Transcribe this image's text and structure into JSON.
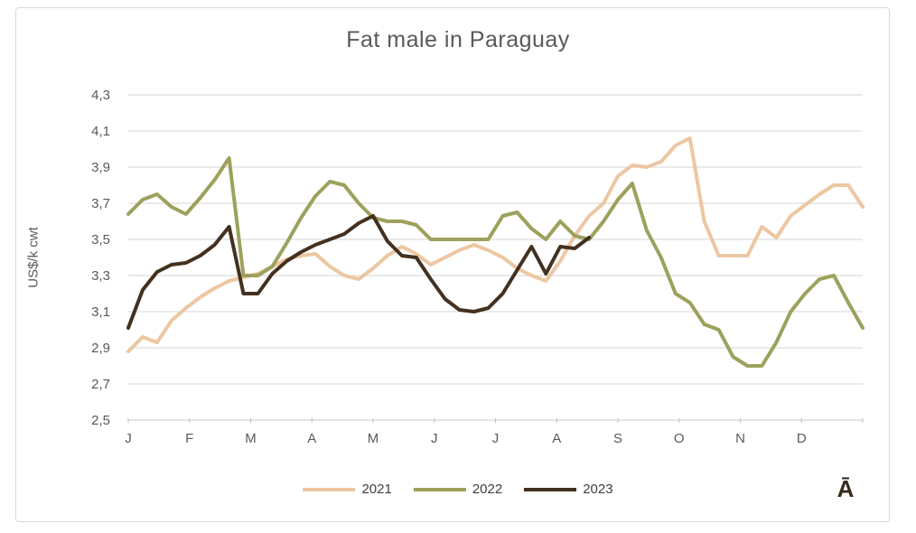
{
  "chart_data": {
    "type": "line",
    "title": "Fat male in Paraguay",
    "ylabel": "US$/k cwt",
    "xlabel": "",
    "ylim": [
      2.5,
      4.3
    ],
    "ytick_step": 0.2,
    "ytick_labels": [
      "4,3",
      "4,1",
      "3,9",
      "3,7",
      "3,5",
      "3,3",
      "3,1",
      "2,9",
      "2,7",
      "2,5"
    ],
    "categories": [
      "J",
      "F",
      "M",
      "A",
      "M",
      "J",
      "J",
      "A",
      "S",
      "O",
      "N",
      "D"
    ],
    "x_unit": "week-of-year",
    "weeks_per_year": 52,
    "grid": "horizontal",
    "legend_position": "bottom",
    "colors": {
      "grid": "#d6d6d6",
      "axis": "#c9c9c9",
      "tick": "#bfbfbf",
      "text": "#595959",
      "legend_text": "#404040"
    },
    "series": [
      {
        "name": "2021",
        "color": "#ecc7a2",
        "values": [
          2.88,
          2.96,
          2.93,
          3.05,
          3.12,
          3.18,
          3.23,
          3.27,
          3.29,
          3.31,
          3.35,
          3.39,
          3.41,
          3.42,
          3.35,
          3.3,
          3.28,
          3.34,
          3.41,
          3.46,
          3.42,
          3.36,
          3.4,
          3.44,
          3.47,
          3.44,
          3.4,
          3.34,
          3.3,
          3.27,
          3.38,
          3.52,
          3.63,
          3.7,
          3.85,
          3.91,
          3.9,
          3.93,
          4.02,
          4.06,
          3.6,
          3.41,
          3.41,
          3.41,
          3.57,
          3.51,
          3.63,
          3.69,
          3.75,
          3.8,
          3.8,
          3.68
        ]
      },
      {
        "name": "2022",
        "color": "#9da15c",
        "values": [
          3.64,
          3.72,
          3.75,
          3.68,
          3.64,
          3.73,
          3.83,
          3.95,
          3.3,
          3.3,
          3.35,
          3.48,
          3.62,
          3.74,
          3.82,
          3.8,
          3.7,
          3.62,
          3.6,
          3.6,
          3.58,
          3.5,
          3.5,
          3.5,
          3.5,
          3.5,
          3.63,
          3.65,
          3.56,
          3.5,
          3.6,
          3.52,
          3.5,
          3.6,
          3.72,
          3.81,
          3.55,
          3.4,
          3.2,
          3.15,
          3.03,
          3.0,
          2.85,
          2.8,
          2.8,
          2.93,
          3.1,
          3.2,
          3.28,
          3.3,
          3.15,
          3.01
        ]
      },
      {
        "name": "2023",
        "color": "#43301f",
        "values": [
          3.01,
          3.22,
          3.32,
          3.36,
          3.37,
          3.41,
          3.47,
          3.57,
          3.2,
          3.2,
          3.31,
          3.38,
          3.43,
          3.47,
          3.5,
          3.53,
          3.59,
          3.63,
          3.49,
          3.41,
          3.4,
          3.28,
          3.17,
          3.11,
          3.1,
          3.12,
          3.2,
          3.33,
          3.46,
          3.31,
          3.46,
          3.45,
          3.51
        ]
      }
    ]
  },
  "annotation": {
    "text": "Ā"
  }
}
